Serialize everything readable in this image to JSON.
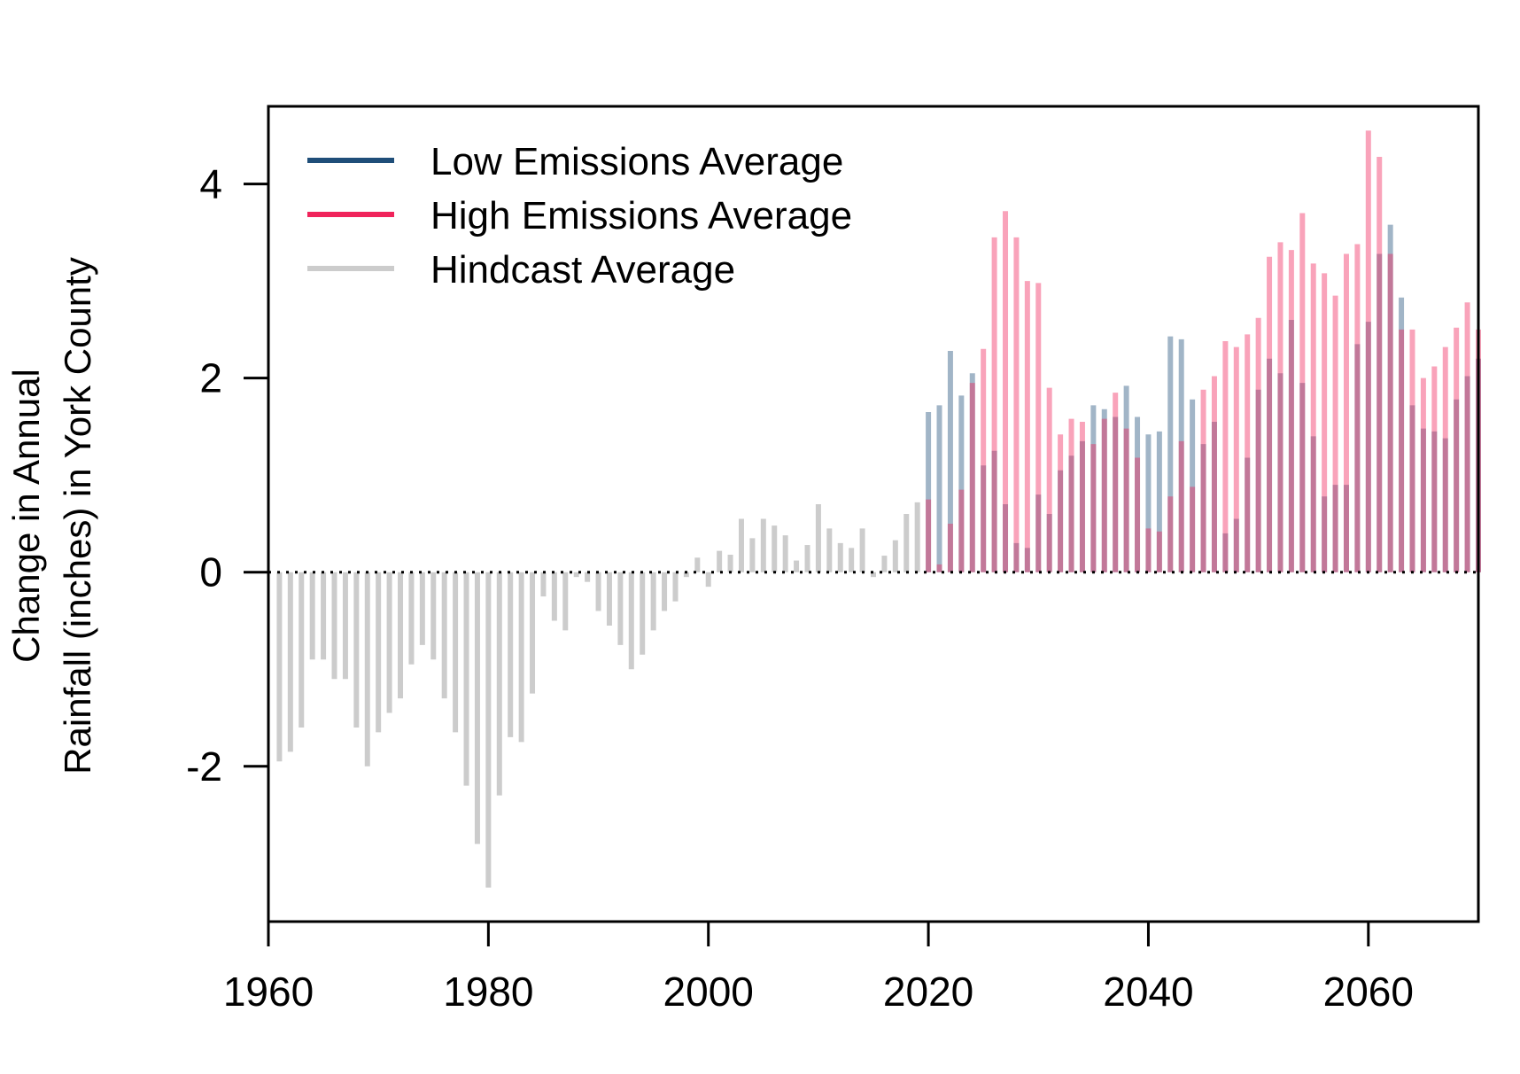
{
  "chart_data": {
    "type": "bar",
    "title": "",
    "xlabel": "",
    "ylabel_lines": [
      "Change in Annual",
      "Rainfall (inches) in York County"
    ],
    "xlim": [
      1960,
      2070
    ],
    "ylim": [
      -3.6,
      4.8
    ],
    "x_ticks": [
      1960,
      1980,
      2000,
      2020,
      2040,
      2060
    ],
    "y_ticks": [
      -2,
      0,
      2,
      4
    ],
    "legend_position": "top-left",
    "zero_line": "dotted",
    "series": [
      {
        "name": "Hindcast Average",
        "color": "#cccccc",
        "x": [
          1961,
          1962,
          1963,
          1964,
          1965,
          1966,
          1967,
          1968,
          1969,
          1970,
          1971,
          1972,
          1973,
          1974,
          1975,
          1976,
          1977,
          1978,
          1979,
          1980,
          1981,
          1982,
          1983,
          1984,
          1985,
          1986,
          1987,
          1988,
          1989,
          1990,
          1991,
          1992,
          1993,
          1994,
          1995,
          1996,
          1997,
          1998,
          1999,
          2000,
          2001,
          2002,
          2003,
          2004,
          2005,
          2006,
          2007,
          2008,
          2009,
          2010,
          2011,
          2012,
          2013,
          2014,
          2015,
          2016,
          2017,
          2018,
          2019
        ],
        "values": [
          -1.95,
          -1.85,
          -1.6,
          -0.9,
          -0.9,
          -1.1,
          -1.1,
          -1.6,
          -2.0,
          -1.65,
          -1.45,
          -1.3,
          -0.95,
          -0.75,
          -0.9,
          -1.3,
          -1.65,
          -2.2,
          -2.8,
          -3.25,
          -2.3,
          -1.7,
          -1.75,
          -1.25,
          -0.25,
          -0.5,
          -0.6,
          -0.05,
          -0.1,
          -0.4,
          -0.55,
          -0.75,
          -1.0,
          -0.85,
          -0.6,
          -0.4,
          -0.3,
          -0.05,
          0.15,
          -0.15,
          0.22,
          0.18,
          0.55,
          0.35,
          0.55,
          0.48,
          0.38,
          0.12,
          0.28,
          0.7,
          0.45,
          0.3,
          0.25,
          0.45,
          -0.05,
          0.17,
          0.33,
          0.6,
          0.72
        ]
      },
      {
        "name": "Low Emissions Average",
        "color": "#1f4e79",
        "x": [
          2020,
          2021,
          2022,
          2023,
          2024,
          2025,
          2026,
          2027,
          2028,
          2029,
          2030,
          2031,
          2032,
          2033,
          2034,
          2035,
          2036,
          2037,
          2038,
          2039,
          2040,
          2041,
          2042,
          2043,
          2044,
          2045,
          2046,
          2047,
          2048,
          2049,
          2050,
          2051,
          2052,
          2053,
          2054,
          2055,
          2056,
          2057,
          2058,
          2059,
          2060,
          2061,
          2062,
          2063,
          2064,
          2065,
          2066,
          2067,
          2068,
          2069,
          2070
        ],
        "values": [
          1.65,
          1.72,
          2.28,
          1.82,
          2.05,
          1.1,
          1.25,
          0.7,
          0.3,
          0.25,
          0.8,
          0.6,
          1.05,
          1.2,
          1.35,
          1.72,
          1.68,
          1.6,
          1.92,
          1.6,
          1.42,
          1.45,
          2.43,
          2.4,
          1.78,
          1.32,
          1.55,
          0.4,
          0.55,
          1.18,
          1.88,
          2.2,
          2.05,
          2.6,
          1.95,
          1.4,
          0.78,
          0.9,
          0.9,
          2.35,
          2.58,
          3.28,
          3.58,
          2.83,
          1.72,
          1.48,
          1.45,
          1.38,
          1.78,
          2.02,
          2.2
        ]
      },
      {
        "name": "High Emissions Average",
        "color": "#f0245b",
        "x": [
          2020,
          2021,
          2022,
          2023,
          2024,
          2025,
          2026,
          2027,
          2028,
          2029,
          2030,
          2031,
          2032,
          2033,
          2034,
          2035,
          2036,
          2037,
          2038,
          2039,
          2040,
          2041,
          2042,
          2043,
          2044,
          2045,
          2046,
          2047,
          2048,
          2049,
          2050,
          2051,
          2052,
          2053,
          2054,
          2055,
          2056,
          2057,
          2058,
          2059,
          2060,
          2061,
          2062,
          2063,
          2064,
          2065,
          2066,
          2067,
          2068,
          2069,
          2070
        ],
        "values": [
          0.75,
          0.08,
          0.5,
          0.85,
          1.95,
          2.3,
          3.45,
          3.72,
          3.45,
          3.0,
          2.98,
          1.9,
          1.42,
          1.58,
          1.55,
          1.32,
          1.58,
          1.85,
          1.48,
          1.18,
          0.45,
          0.42,
          0.78,
          1.35,
          0.88,
          1.88,
          2.02,
          2.38,
          2.32,
          2.45,
          2.62,
          3.25,
          3.4,
          3.32,
          3.7,
          3.18,
          3.08,
          2.85,
          3.28,
          3.38,
          4.55,
          4.28,
          3.28,
          2.5,
          2.5,
          2.0,
          2.12,
          2.32,
          2.52,
          2.78,
          2.5
        ]
      }
    ]
  }
}
